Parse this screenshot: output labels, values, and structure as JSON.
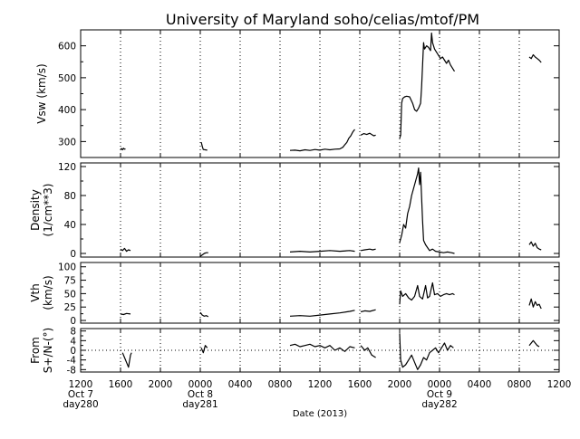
{
  "chart_data": {
    "type": "line",
    "title": "University of Maryland  soho/celias/mtof/PM",
    "xlabel": "Date (2013)",
    "x_ticks": [
      "1200",
      "1600",
      "2000",
      "0000",
      "0400",
      "0800",
      "1200",
      "1600",
      "2000",
      "0000",
      "0400",
      "0800",
      "1200"
    ],
    "x_tick_hours": [
      12,
      16,
      20,
      24,
      28,
      32,
      36,
      40,
      44,
      48,
      52,
      56,
      60
    ],
    "x_day_labels": [
      {
        "hour": 12,
        "date": "Oct 7",
        "doy": "day280"
      },
      {
        "hour": 24,
        "date": "Oct 8",
        "doy": "day281"
      },
      {
        "hour": 48,
        "date": "Oct 9",
        "doy": "day282"
      }
    ],
    "xlim": [
      12,
      60
    ],
    "dotted_vertical_gridlines": true,
    "panels": [
      {
        "id": "vsw",
        "ylabel_lines": [
          "Vsw (km/s)"
        ],
        "ylim": [
          250,
          650
        ],
        "yticks": [
          300,
          400,
          500,
          600
        ],
        "dotted_zero_line": false,
        "segments": [
          [
            [
              16.0,
              275
            ],
            [
              16.1,
              278
            ],
            [
              16.2,
              274
            ],
            [
              16.3,
              279
            ],
            [
              16.4,
              276
            ],
            [
              16.5,
              277
            ]
          ],
          [
            [
              24.1,
              298
            ],
            [
              24.2,
              285
            ],
            [
              24.3,
              275
            ],
            [
              24.5,
              274
            ],
            [
              24.7,
              273
            ]
          ],
          [
            [
              33.0,
              272
            ],
            [
              33.5,
              273
            ],
            [
              34.0,
              271
            ],
            [
              34.5,
              274
            ],
            [
              35.0,
              272
            ],
            [
              35.5,
              275
            ],
            [
              36.0,
              273
            ],
            [
              36.5,
              276
            ],
            [
              37.0,
              274
            ],
            [
              37.5,
              276
            ],
            [
              38.0,
              277
            ],
            [
              38.3,
              282
            ],
            [
              38.5,
              290
            ],
            [
              38.7,
              297
            ],
            [
              38.9,
              310
            ],
            [
              39.1,
              318
            ],
            [
              39.3,
              330
            ],
            [
              39.5,
              338
            ]
          ],
          [
            [
              40.1,
              320
            ],
            [
              40.4,
              325
            ],
            [
              40.7,
              322
            ],
            [
              41.0,
              326
            ],
            [
              41.4,
              318
            ],
            [
              41.6,
              320
            ]
          ],
          [
            [
              44.0,
              310
            ],
            [
              44.1,
              320
            ],
            [
              44.2,
              420
            ],
            [
              44.3,
              435
            ],
            [
              44.5,
              440
            ],
            [
              44.7,
              442
            ],
            [
              45.0,
              440
            ],
            [
              45.3,
              420
            ],
            [
              45.5,
              400
            ],
            [
              45.7,
              395
            ],
            [
              45.9,
              405
            ],
            [
              46.1,
              420
            ],
            [
              46.2,
              470
            ],
            [
              46.3,
              540
            ],
            [
              46.4,
              610
            ],
            [
              46.5,
              590
            ],
            [
              46.7,
              600
            ],
            [
              46.9,
              595
            ],
            [
              47.1,
              585
            ],
            [
              47.2,
              640
            ],
            [
              47.3,
              610
            ],
            [
              47.5,
              590
            ],
            [
              47.7,
              580
            ],
            [
              47.9,
              570
            ],
            [
              48.1,
              560
            ],
            [
              48.3,
              565
            ],
            [
              48.5,
              555
            ],
            [
              48.7,
              545
            ],
            [
              48.9,
              555
            ],
            [
              49.1,
              540
            ],
            [
              49.3,
              530
            ],
            [
              49.5,
              520
            ]
          ],
          [
            [
              57.0,
              565
            ],
            [
              57.2,
              560
            ],
            [
              57.4,
              572
            ],
            [
              57.6,
              565
            ],
            [
              57.8,
              560
            ],
            [
              58.0,
              555
            ],
            [
              58.2,
              548
            ]
          ]
        ]
      },
      {
        "id": "density",
        "ylabel_lines": [
          "Density",
          "(1/cm**3)"
        ],
        "ylim": [
          -5,
          125
        ],
        "yticks": [
          0,
          40,
          80,
          120
        ],
        "dotted_zero_line": false,
        "segments": [
          [
            [
              16.0,
              6
            ],
            [
              16.2,
              4
            ],
            [
              16.4,
              7
            ],
            [
              16.6,
              3
            ],
            [
              16.8,
              5
            ],
            [
              17.0,
              4
            ]
          ],
          [
            [
              24.0,
              -4
            ],
            [
              24.2,
              -2
            ],
            [
              24.4,
              0
            ],
            [
              24.6,
              1
            ],
            [
              24.8,
              1
            ]
          ],
          [
            [
              33.0,
              2
            ],
            [
              34.0,
              3
            ],
            [
              35.0,
              2
            ],
            [
              36.0,
              3
            ],
            [
              37.0,
              4
            ],
            [
              38.0,
              3
            ],
            [
              39.0,
              4
            ],
            [
              39.5,
              3
            ]
          ],
          [
            [
              40.1,
              4
            ],
            [
              40.5,
              5
            ],
            [
              41.0,
              6
            ],
            [
              41.3,
              5
            ],
            [
              41.6,
              6
            ]
          ],
          [
            [
              44.0,
              15
            ],
            [
              44.2,
              25
            ],
            [
              44.4,
              40
            ],
            [
              44.6,
              35
            ],
            [
              44.8,
              55
            ],
            [
              45.0,
              65
            ],
            [
              45.2,
              80
            ],
            [
              45.4,
              90
            ],
            [
              45.6,
              100
            ],
            [
              45.8,
              110
            ],
            [
              45.9,
              118
            ],
            [
              46.0,
              95
            ],
            [
              46.1,
              112
            ],
            [
              46.2,
              78
            ],
            [
              46.3,
              45
            ],
            [
              46.4,
              18
            ],
            [
              46.6,
              12
            ],
            [
              46.8,
              8
            ],
            [
              47.0,
              4
            ],
            [
              47.3,
              6
            ],
            [
              47.6,
              3
            ],
            [
              48.0,
              2
            ],
            [
              48.4,
              1
            ],
            [
              48.8,
              2
            ],
            [
              49.2,
              1
            ],
            [
              49.5,
              0
            ]
          ],
          [
            [
              57.0,
              12
            ],
            [
              57.2,
              16
            ],
            [
              57.4,
              10
            ],
            [
              57.6,
              14
            ],
            [
              57.8,
              8
            ],
            [
              58.0,
              6
            ],
            [
              58.2,
              5
            ]
          ]
        ]
      },
      {
        "id": "vth",
        "ylabel_lines": [
          "Vth",
          "(km/s)"
        ],
        "ylim": [
          -5,
          108
        ],
        "yticks": [
          0,
          25,
          50,
          75,
          100
        ],
        "ytick_labels": [
          "0",
          "25",
          "50",
          "75",
          "100"
        ],
        "dotted_zero_line": false,
        "segments": [
          [
            [
              16.0,
              12
            ],
            [
              16.3,
              11
            ],
            [
              16.6,
              13
            ],
            [
              17.0,
              12
            ]
          ],
          [
            [
              24.0,
              15
            ],
            [
              24.2,
              10
            ],
            [
              24.4,
              8
            ],
            [
              24.6,
              9
            ],
            [
              24.8,
              7
            ]
          ],
          [
            [
              33.0,
              8
            ],
            [
              34.0,
              9
            ],
            [
              35.0,
              8
            ],
            [
              36.0,
              10
            ],
            [
              37.0,
              12
            ],
            [
              38.0,
              14
            ],
            [
              39.0,
              17
            ],
            [
              39.5,
              19
            ]
          ],
          [
            [
              40.1,
              16
            ],
            [
              40.5,
              18
            ],
            [
              41.0,
              17
            ],
            [
              41.6,
              20
            ]
          ],
          [
            [
              44.0,
              30
            ],
            [
              44.1,
              55
            ],
            [
              44.3,
              45
            ],
            [
              44.6,
              50
            ],
            [
              44.9,
              42
            ],
            [
              45.2,
              38
            ],
            [
              45.5,
              45
            ],
            [
              45.8,
              65
            ],
            [
              46.0,
              45
            ],
            [
              46.3,
              40
            ],
            [
              46.6,
              65
            ],
            [
              46.8,
              42
            ],
            [
              47.0,
              45
            ],
            [
              47.3,
              70
            ],
            [
              47.5,
              48
            ],
            [
              47.8,
              50
            ],
            [
              48.1,
              45
            ],
            [
              48.4,
              48
            ],
            [
              48.7,
              50
            ],
            [
              49.0,
              48
            ],
            [
              49.3,
              50
            ],
            [
              49.5,
              48
            ]
          ],
          [
            [
              57.0,
              28
            ],
            [
              57.2,
              40
            ],
            [
              57.4,
              25
            ],
            [
              57.6,
              35
            ],
            [
              57.8,
              28
            ],
            [
              58.0,
              30
            ],
            [
              58.2,
              22
            ]
          ]
        ]
      },
      {
        "id": "from",
        "ylabel_lines": [
          "From",
          "S+/N-(°)"
        ],
        "ylim": [
          -9,
          9
        ],
        "yticks": [
          -8,
          -4,
          0,
          4,
          8
        ],
        "dotted_zero_line": true,
        "segments": [
          [
            [
              16.2,
              -1
            ],
            [
              16.4,
              -3
            ],
            [
              16.6,
              -5
            ],
            [
              16.8,
              -7
            ],
            [
              17.0,
              -2
            ],
            [
              17.1,
              -1
            ]
          ],
          [
            [
              24.1,
              1
            ],
            [
              24.3,
              -1
            ],
            [
              24.5,
              2
            ],
            [
              24.7,
              1
            ]
          ],
          [
            [
              33.0,
              2
            ],
            [
              33.5,
              2.5
            ],
            [
              34.0,
              1.5
            ],
            [
              34.5,
              2
            ],
            [
              35.0,
              2.5
            ],
            [
              35.5,
              1.5
            ],
            [
              36.0,
              2
            ],
            [
              36.5,
              1
            ],
            [
              37.0,
              2
            ],
            [
              37.5,
              0
            ],
            [
              38.0,
              1
            ],
            [
              38.5,
              -0.5
            ],
            [
              39.0,
              1.5
            ],
            [
              39.5,
              1
            ]
          ],
          [
            [
              40.1,
              2
            ],
            [
              40.5,
              0
            ],
            [
              40.8,
              1
            ],
            [
              41.2,
              -2
            ],
            [
              41.6,
              -3
            ]
          ],
          [
            [
              44.0,
              7
            ],
            [
              44.1,
              -4
            ],
            [
              44.3,
              -7
            ],
            [
              44.6,
              -6
            ],
            [
              44.9,
              -4
            ],
            [
              45.2,
              -2
            ],
            [
              45.5,
              -5
            ],
            [
              45.8,
              -8
            ],
            [
              46.1,
              -6
            ],
            [
              46.4,
              -3
            ],
            [
              46.7,
              -4
            ],
            [
              47.0,
              -1
            ],
            [
              47.3,
              0
            ],
            [
              47.6,
              1
            ],
            [
              47.9,
              -1
            ],
            [
              48.2,
              1
            ],
            [
              48.5,
              3
            ],
            [
              48.8,
              0
            ],
            [
              49.1,
              2
            ],
            [
              49.4,
              1
            ]
          ],
          [
            [
              57.0,
              2
            ],
            [
              57.2,
              3
            ],
            [
              57.4,
              4
            ],
            [
              57.6,
              3
            ],
            [
              57.8,
              2
            ],
            [
              58.0,
              1.5
            ]
          ]
        ]
      }
    ]
  }
}
